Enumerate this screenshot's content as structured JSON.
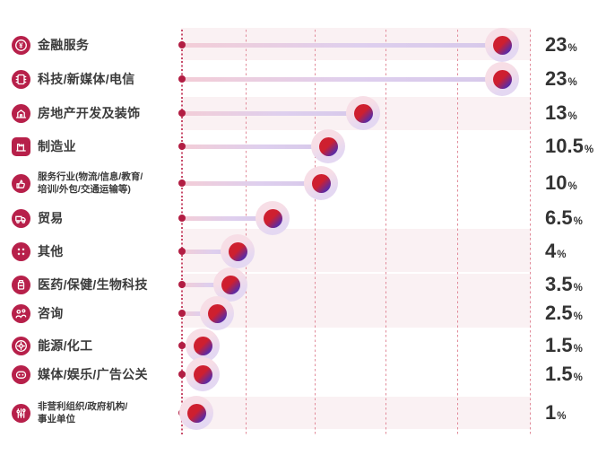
{
  "chart_data": {
    "type": "bar",
    "variant": "lollipop",
    "orientation": "horizontal",
    "title": "",
    "xlabel": "",
    "ylabel": "",
    "unit": "%",
    "xlim": [
      0,
      25
    ],
    "gridline_step": 5,
    "grid": true,
    "legend": false,
    "colors": {
      "icon_badge": "#b7204a",
      "dot_red": "#ce1f2f",
      "dot_purple": "#5e2ba2",
      "halo_pink": "#f7dee6",
      "halo_lavender": "#e4d8f2",
      "stick_pink": "#f3cdd7",
      "stick_lavender": "#d6c8ea",
      "gridline_red": "#e18b9a",
      "stripe_pink": "#faf1f3",
      "label_text": "#3b3b3b",
      "value_text": "#333333"
    },
    "categories": [
      "金融服务",
      "科技/新媒体/电信",
      "房地产开发及装饰",
      "制造业",
      "服务行业(物流/信息/教育/培训/外包/交通运输等)",
      "贸易",
      "其他",
      "医药/保健/生物科技",
      "咨询",
      "能源/化工",
      "媒体/娱乐/广告公关",
      "非营利组织/政府机构/事业单位"
    ],
    "values": [
      23,
      23,
      13,
      10.5,
      10,
      6.5,
      4,
      3.5,
      2.5,
      1.5,
      1.5,
      1
    ],
    "rows": [
      {
        "label_lines": [
          "金融服务"
        ],
        "icon": "finance-coin-icon",
        "value": 23,
        "value_label": "23",
        "small": false
      },
      {
        "label_lines": [
          "科技/新媒体/电信"
        ],
        "icon": "tech-chip-icon",
        "value": 23,
        "value_label": "23",
        "small": false
      },
      {
        "label_lines": [
          "房地产开发及装饰"
        ],
        "icon": "real-estate-building-icon",
        "value": 13,
        "value_label": "13",
        "small": false
      },
      {
        "label_lines": [
          "制造业"
        ],
        "icon": "factory-icon",
        "value": 10.5,
        "value_label": "10.5",
        "small": false
      },
      {
        "label_lines": [
          "服务行业(物流/信息/教育/",
          "培训/外包/交通运输等)"
        ],
        "icon": "service-thumbs-up-icon",
        "value": 10,
        "value_label": "10",
        "small": true
      },
      {
        "label_lines": [
          "贸易"
        ],
        "icon": "trade-truck-icon",
        "value": 6.5,
        "value_label": "6.5",
        "small": false
      },
      {
        "label_lines": [
          "其他"
        ],
        "icon": "other-diamonds-icon",
        "value": 4,
        "value_label": "4",
        "small": false
      },
      {
        "label_lines": [
          "医药/保健/生物科技"
        ],
        "icon": "pharma-bottle-icon",
        "value": 3.5,
        "value_label": "3.5",
        "small": false
      },
      {
        "label_lines": [
          "咨询"
        ],
        "icon": "consulting-people-icon",
        "value": 2.5,
        "value_label": "2.5",
        "small": false
      },
      {
        "label_lines": [
          "能源/化工"
        ],
        "icon": "energy-icon",
        "value": 1.5,
        "value_label": "1.5",
        "small": false
      },
      {
        "label_lines": [
          "媒体/娱乐/广告公关"
        ],
        "icon": "media-face-icon",
        "value": 1.5,
        "value_label": "1.5",
        "small": false
      },
      {
        "label_lines": [
          "非营利组织/政府机构/",
          "事业单位"
        ],
        "icon": "nonprofit-sliders-icon",
        "value": 1,
        "value_label": "1",
        "small": true
      }
    ]
  }
}
